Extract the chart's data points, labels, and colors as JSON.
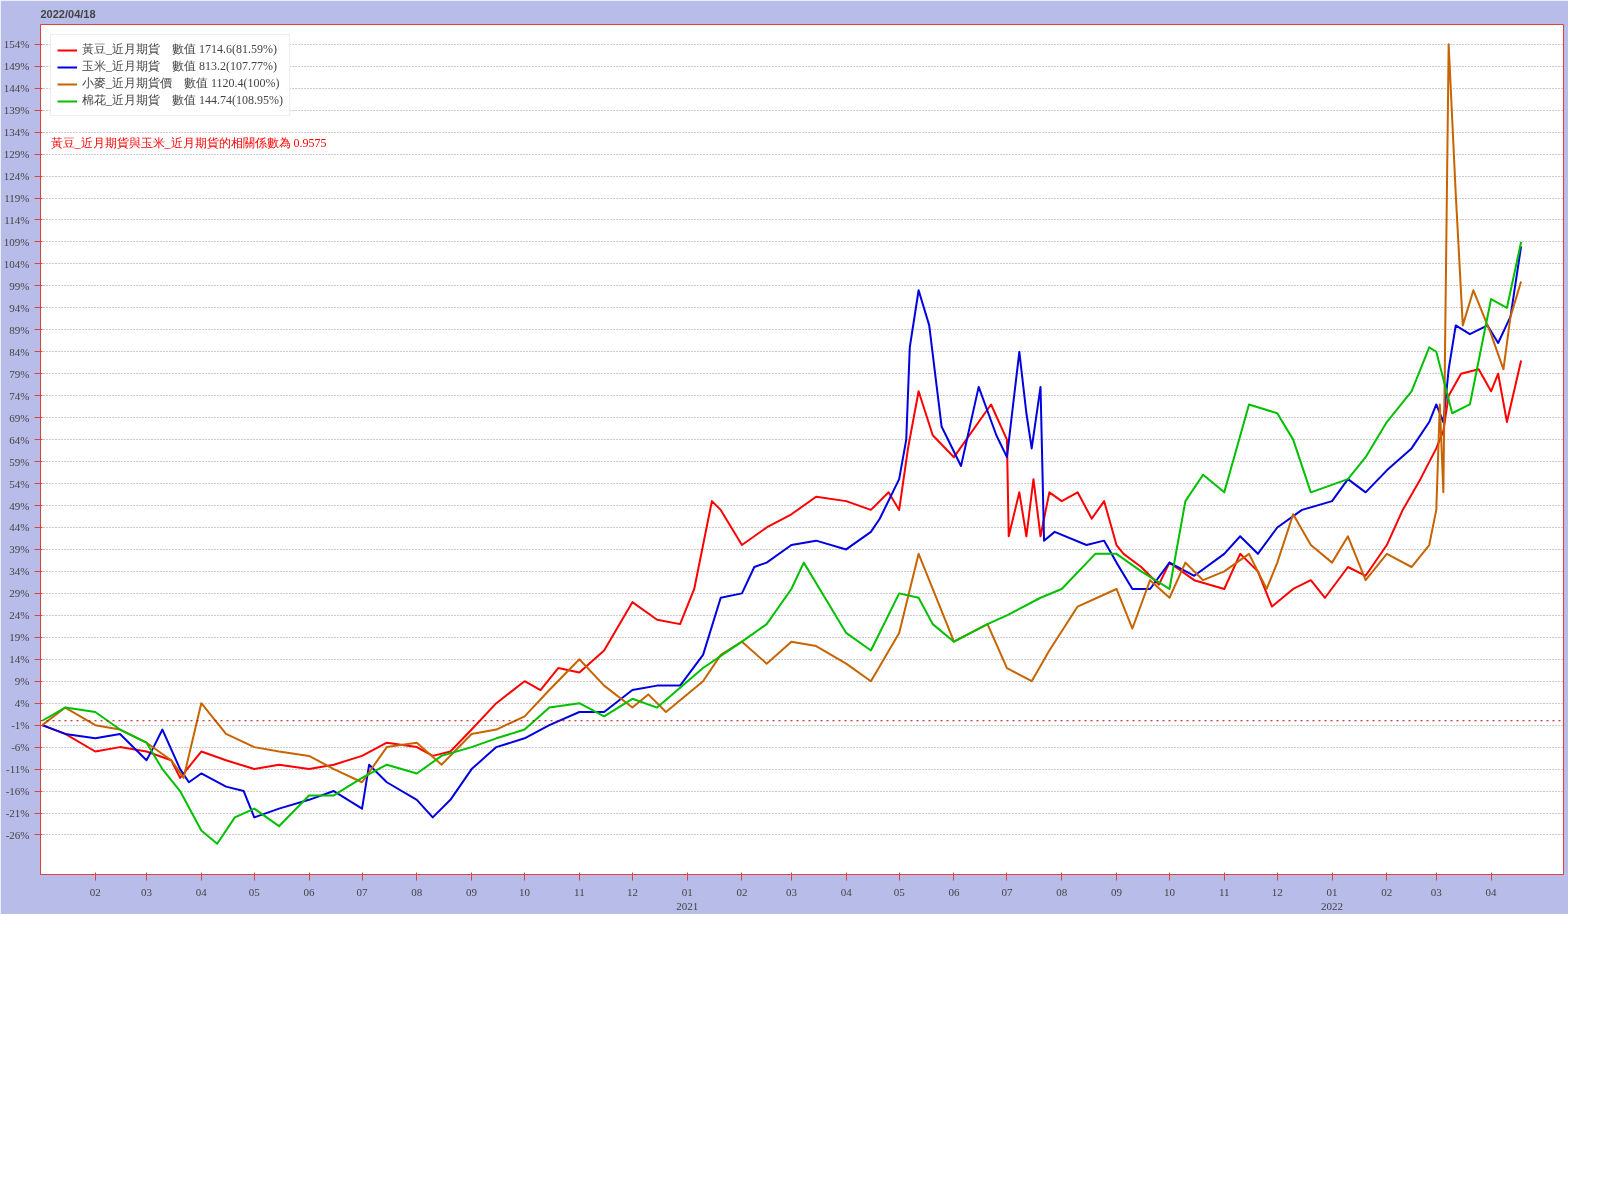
{
  "chart_data": {
    "type": "line",
    "subtitle": "2022/04/18",
    "annotations": [
      "黃豆_近月期貨與玉米_近月期貨的相關係數為 0.9575"
    ],
    "ylim": [
      -35,
      158.5
    ],
    "yticks": [
      {
        "value": -26,
        "label": "-26%"
      },
      {
        "value": -21,
        "label": "-21%"
      },
      {
        "value": -16,
        "label": "-16%"
      },
      {
        "value": -11,
        "label": "-11%"
      },
      {
        "value": -6,
        "label": "-6%"
      },
      {
        "value": -1,
        "label": "-1%"
      },
      {
        "value": 4,
        "label": "4%"
      },
      {
        "value": 9,
        "label": "9%"
      },
      {
        "value": 14,
        "label": "14%"
      },
      {
        "value": 19,
        "label": "19%"
      },
      {
        "value": 24,
        "label": "24%"
      },
      {
        "value": 29,
        "label": "29%"
      },
      {
        "value": 34,
        "label": "34%"
      },
      {
        "value": 39,
        "label": "39%"
      },
      {
        "value": 44,
        "label": "44%"
      },
      {
        "value": 49,
        "label": "49%"
      },
      {
        "value": 54,
        "label": "54%"
      },
      {
        "value": 59,
        "label": "59%"
      },
      {
        "value": 64,
        "label": "64%"
      },
      {
        "value": 69,
        "label": "69%"
      },
      {
        "value": 74,
        "label": "74%"
      },
      {
        "value": 79,
        "label": "79%"
      },
      {
        "value": 84,
        "label": "84%"
      },
      {
        "value": 89,
        "label": "89%"
      },
      {
        "value": 94,
        "label": "94%"
      },
      {
        "value": 99,
        "label": "99%"
      },
      {
        "value": 104,
        "label": "104%"
      },
      {
        "value": 109,
        "label": "109%"
      },
      {
        "value": 114,
        "label": "114%"
      },
      {
        "value": 119,
        "label": "119%"
      },
      {
        "value": 124,
        "label": "124%"
      },
      {
        "value": 129,
        "label": "129%"
      },
      {
        "value": 134,
        "label": "134%"
      },
      {
        "value": 139,
        "label": "139%"
      },
      {
        "value": 144,
        "label": "144%"
      },
      {
        "value": 149,
        "label": "149%"
      },
      {
        "value": 154,
        "label": "154%"
      }
    ],
    "xlim": [
      "2020-01-01",
      "2022-05-12"
    ],
    "xticks": [
      {
        "value": "2020-02-01",
        "label": "02"
      },
      {
        "value": "2020-03-01",
        "label": "03"
      },
      {
        "value": "2020-04-01",
        "label": "04"
      },
      {
        "value": "2020-05-01",
        "label": "05"
      },
      {
        "value": "2020-06-01",
        "label": "06"
      },
      {
        "value": "2020-07-01",
        "label": "07"
      },
      {
        "value": "2020-08-01",
        "label": "08"
      },
      {
        "value": "2020-09-01",
        "label": "09"
      },
      {
        "value": "2020-10-01",
        "label": "10"
      },
      {
        "value": "2020-11-01",
        "label": "11"
      },
      {
        "value": "2020-12-01",
        "label": "12"
      },
      {
        "value": "2021-01-01",
        "label": "01\n2021"
      },
      {
        "value": "2021-02-01",
        "label": "02"
      },
      {
        "value": "2021-03-01",
        "label": "03"
      },
      {
        "value": "2021-04-01",
        "label": "04"
      },
      {
        "value": "2021-05-01",
        "label": "05"
      },
      {
        "value": "2021-06-01",
        "label": "06"
      },
      {
        "value": "2021-07-01",
        "label": "07"
      },
      {
        "value": "2021-08-01",
        "label": "08"
      },
      {
        "value": "2021-09-01",
        "label": "09"
      },
      {
        "value": "2021-10-01",
        "label": "10"
      },
      {
        "value": "2021-11-01",
        "label": "11"
      },
      {
        "value": "2021-12-01",
        "label": "12"
      },
      {
        "value": "2022-01-01",
        "label": "01\n2022"
      },
      {
        "value": "2022-02-01",
        "label": "02"
      },
      {
        "value": "2022-03-01",
        "label": "03"
      },
      {
        "value": "2022-04-01",
        "label": "04"
      }
    ],
    "grid": "y",
    "legend": "top left",
    "marker": "none",
    "line_style": "solid",
    "ref_lines": [
      {
        "axis": "y",
        "value": 0,
        "color": "#c00000",
        "line_style": "dotted"
      }
    ],
    "series": [
      {
        "name": "黃豆_近月期貨　數值 1714.6(81.59%)",
        "color": "#ff0000",
        "x": [
          "2020-01-02",
          "2020-01-15",
          "2020-02-01",
          "2020-02-15",
          "2020-03-01",
          "2020-03-15",
          "2020-03-20",
          "2020-04-01",
          "2020-04-15",
          "2020-05-01",
          "2020-05-15",
          "2020-06-01",
          "2020-06-15",
          "2020-07-01",
          "2020-07-15",
          "2020-08-01",
          "2020-08-10",
          "2020-08-20",
          "2020-09-01",
          "2020-09-15",
          "2020-10-01",
          "2020-10-10",
          "2020-10-20",
          "2020-11-01",
          "2020-11-15",
          "2020-12-01",
          "2020-12-15",
          "2020-12-28",
          "2021-01-05",
          "2021-01-15",
          "2021-01-20",
          "2021-02-01",
          "2021-02-15",
          "2021-03-01",
          "2021-03-15",
          "2021-04-01",
          "2021-04-15",
          "2021-04-25",
          "2021-05-01",
          "2021-05-06",
          "2021-05-12",
          "2021-05-20",
          "2021-06-01",
          "2021-06-15",
          "2021-06-22",
          "2021-07-01",
          "2021-07-02",
          "2021-07-08",
          "2021-07-12",
          "2021-07-16",
          "2021-07-20",
          "2021-07-25",
          "2021-08-01",
          "2021-08-10",
          "2021-08-18",
          "2021-08-25",
          "2021-09-01",
          "2021-09-05",
          "2021-09-15",
          "2021-09-25",
          "2021-10-01",
          "2021-10-15",
          "2021-11-01",
          "2021-11-10",
          "2021-11-20",
          "2021-11-28",
          "2021-12-10",
          "2021-12-20",
          "2021-12-28",
          "2022-01-10",
          "2022-01-20",
          "2022-02-01",
          "2022-02-10",
          "2022-02-20",
          "2022-03-01",
          "2022-03-05",
          "2022-03-08",
          "2022-03-15",
          "2022-03-25",
          "2022-04-01",
          "2022-04-05",
          "2022-04-10",
          "2022-04-14",
          "2022-04-18"
        ],
        "values": [
          -1,
          -3,
          -7,
          -6,
          -7,
          -9,
          -13,
          -7,
          -9,
          -11,
          -10,
          -11,
          -10,
          -8,
          -5,
          -6,
          -8,
          -7,
          -2,
          4,
          9,
          7,
          12,
          11,
          16,
          27,
          23,
          22,
          30,
          50,
          48,
          40,
          44,
          47,
          51,
          50,
          48,
          52,
          48,
          62,
          75,
          65,
          60,
          68,
          72,
          64,
          42,
          52,
          42,
          55,
          42,
          52,
          50,
          52,
          46,
          50,
          40,
          38,
          35,
          31,
          36,
          32,
          30,
          38,
          34,
          26,
          30,
          32,
          28,
          35,
          33,
          40,
          48,
          55,
          62,
          66,
          74,
          79,
          80,
          75,
          79,
          68,
          75,
          82
        ]
      },
      {
        "name": "玉米_近月期貨　數值 813.2(107.77%)",
        "color": "#0000e0",
        "x": [
          "2020-01-02",
          "2020-01-15",
          "2020-02-01",
          "2020-02-15",
          "2020-03-01",
          "2020-03-05",
          "2020-03-10",
          "2020-03-20",
          "2020-03-25",
          "2020-04-01",
          "2020-04-15",
          "2020-04-25",
          "2020-05-01",
          "2020-05-15",
          "2020-06-01",
          "2020-06-15",
          "2020-07-01",
          "2020-07-05",
          "2020-07-15",
          "2020-08-01",
          "2020-08-10",
          "2020-08-20",
          "2020-09-01",
          "2020-09-15",
          "2020-10-01",
          "2020-10-15",
          "2020-11-01",
          "2020-11-15",
          "2020-12-01",
          "2020-12-15",
          "2020-12-28",
          "2021-01-10",
          "2021-01-20",
          "2021-02-01",
          "2021-02-08",
          "2021-02-15",
          "2021-03-01",
          "2021-03-15",
          "2021-04-01",
          "2021-04-15",
          "2021-04-20",
          "2021-05-01",
          "2021-05-05",
          "2021-05-07",
          "2021-05-12",
          "2021-05-18",
          "2021-05-25",
          "2021-06-05",
          "2021-06-15",
          "2021-06-25",
          "2021-07-01",
          "2021-07-08",
          "2021-07-12",
          "2021-07-15",
          "2021-07-20",
          "2021-07-22",
          "2021-07-28",
          "2021-08-15",
          "2021-08-25",
          "2021-09-01",
          "2021-09-10",
          "2021-09-20",
          "2021-10-01",
          "2021-10-15",
          "2021-11-01",
          "2021-11-10",
          "2021-11-20",
          "2021-12-01",
          "2021-12-15",
          "2022-01-01",
          "2022-01-10",
          "2022-01-20",
          "2022-02-01",
          "2022-02-15",
          "2022-02-25",
          "2022-03-01",
          "2022-03-05",
          "2022-03-08",
          "2022-03-12",
          "2022-03-20",
          "2022-03-30",
          "2022-04-05",
          "2022-04-12",
          "2022-04-18"
        ],
        "values": [
          -1,
          -3,
          -4,
          -3,
          -9,
          -6,
          -2,
          -11,
          -14,
          -12,
          -15,
          -16,
          -22,
          -20,
          -18,
          -16,
          -20,
          -10,
          -14,
          -18,
          -22,
          -18,
          -11,
          -6,
          -4,
          -1,
          2,
          2,
          7,
          8,
          8,
          15,
          28,
          29,
          35,
          36,
          40,
          41,
          39,
          43,
          46,
          55,
          64,
          85,
          98,
          90,
          67,
          58,
          76,
          65,
          60,
          84,
          70,
          62,
          76,
          41,
          43,
          40,
          41,
          36,
          30,
          30,
          36,
          33,
          38,
          42,
          38,
          44,
          48,
          50,
          55,
          52,
          57,
          62,
          68,
          72,
          68,
          80,
          90,
          88,
          90,
          86,
          92,
          108
        ]
      },
      {
        "name": "小麥_近月期貨價　數值 1120.4(100%)",
        "color": "#c86400",
        "x": [
          "2020-01-02",
          "2020-01-15",
          "2020-02-01",
          "2020-02-15",
          "2020-03-01",
          "2020-03-15",
          "2020-03-22",
          "2020-04-01",
          "2020-04-15",
          "2020-05-01",
          "2020-05-15",
          "2020-06-01",
          "2020-06-15",
          "2020-07-01",
          "2020-07-15",
          "2020-08-01",
          "2020-08-15",
          "2020-09-01",
          "2020-09-15",
          "2020-10-01",
          "2020-10-15",
          "2020-11-01",
          "2020-11-15",
          "2020-12-01",
          "2020-12-10",
          "2020-12-20",
          "2021-01-10",
          "2021-01-20",
          "2021-02-01",
          "2021-02-15",
          "2021-03-01",
          "2021-03-15",
          "2021-04-01",
          "2021-04-15",
          "2021-05-01",
          "2021-05-12",
          "2021-05-20",
          "2021-06-01",
          "2021-06-20",
          "2021-07-01",
          "2021-07-15",
          "2021-07-25",
          "2021-08-10",
          "2021-09-01",
          "2021-09-10",
          "2021-09-20",
          "2021-10-01",
          "2021-10-10",
          "2021-10-20",
          "2021-11-01",
          "2021-11-15",
          "2021-11-25",
          "2021-12-01",
          "2021-12-10",
          "2021-12-20",
          "2022-01-01",
          "2022-01-10",
          "2022-01-20",
          "2022-02-01",
          "2022-02-15",
          "2022-02-25",
          "2022-03-01",
          "2022-03-03",
          "2022-03-05",
          "2022-03-08",
          "2022-03-12",
          "2022-03-16",
          "2022-03-22",
          "2022-04-01",
          "2022-04-08",
          "2022-04-12",
          "2022-04-18"
        ],
        "values": [
          -1,
          3,
          -1,
          -2,
          -5,
          -9,
          -13,
          4,
          -3,
          -6,
          -7,
          -8,
          -11,
          -14,
          -6,
          -5,
          -10,
          -3,
          -2,
          1,
          7,
          14,
          8,
          3,
          6,
          2,
          9,
          15,
          18,
          13,
          18,
          17,
          13,
          9,
          20,
          38,
          30,
          18,
          22,
          12,
          9,
          16,
          26,
          30,
          21,
          32,
          28,
          36,
          32,
          34,
          38,
          30,
          36,
          47,
          40,
          36,
          42,
          32,
          38,
          35,
          40,
          48,
          72,
          52,
          154,
          120,
          90,
          98,
          88,
          80,
          92,
          100
        ]
      },
      {
        "name": "棉花_近月期貨　數值 144.74(108.95%)",
        "color": "#00c000",
        "x": [
          "2020-01-02",
          "2020-01-15",
          "2020-02-01",
          "2020-02-15",
          "2020-03-01",
          "2020-03-10",
          "2020-03-20",
          "2020-04-01",
          "2020-04-10",
          "2020-04-20",
          "2020-05-01",
          "2020-05-15",
          "2020-06-01",
          "2020-06-15",
          "2020-07-01",
          "2020-07-15",
          "2020-08-01",
          "2020-08-15",
          "2020-09-01",
          "2020-09-15",
          "2020-10-01",
          "2020-10-15",
          "2020-11-01",
          "2020-11-15",
          "2020-12-01",
          "2020-12-15",
          "2021-01-10",
          "2021-02-01",
          "2021-02-15",
          "2021-03-01",
          "2021-03-08",
          "2021-03-20",
          "2021-04-01",
          "2021-04-15",
          "2021-05-01",
          "2021-05-12",
          "2021-05-20",
          "2021-06-01",
          "2021-06-20",
          "2021-07-01",
          "2021-07-20",
          "2021-08-01",
          "2021-08-20",
          "2021-09-01",
          "2021-09-15",
          "2021-10-01",
          "2021-10-10",
          "2021-10-20",
          "2021-11-01",
          "2021-11-15",
          "2021-12-01",
          "2021-12-10",
          "2021-12-20",
          "2022-01-10",
          "2022-01-20",
          "2022-02-01",
          "2022-02-15",
          "2022-02-25",
          "2022-03-01",
          "2022-03-10",
          "2022-03-20",
          "2022-04-01",
          "2022-04-10",
          "2022-04-18"
        ],
        "values": [
          0,
          3,
          2,
          -2,
          -5,
          -11,
          -16,
          -25,
          -28,
          -22,
          -20,
          -24,
          -17,
          -17,
          -13,
          -10,
          -12,
          -8,
          -6,
          -4,
          -2,
          3,
          4,
          1,
          5,
          3,
          12,
          18,
          22,
          30,
          36,
          28,
          20,
          16,
          29,
          28,
          22,
          18,
          22,
          24,
          28,
          30,
          38,
          38,
          34,
          30,
          50,
          56,
          52,
          72,
          70,
          64,
          52,
          55,
          60,
          68,
          75,
          85,
          84,
          70,
          72,
          96,
          94,
          109
        ]
      }
    ]
  }
}
